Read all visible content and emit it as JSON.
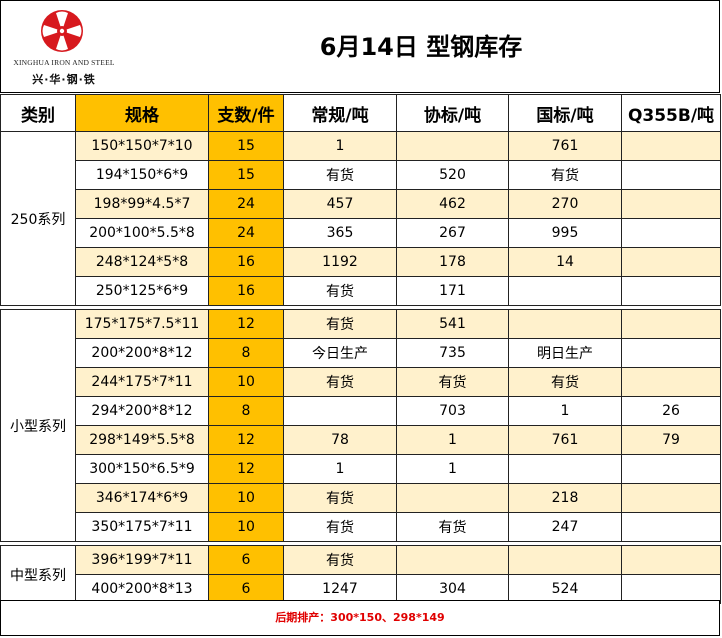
{
  "header": {
    "logo_en": "XINGHUA IRON AND STEEL",
    "logo_cn": "兴·华·钢·铁",
    "title": "6月14日 型钢库存"
  },
  "columns": [
    "类别",
    "规格",
    "支数/件",
    "常规/吨",
    "协标/吨",
    "国标/吨",
    "Q355B/吨"
  ],
  "groups": [
    {
      "name": "250系列",
      "rows": [
        {
          "spec": "150*150*7*10",
          "count": "15",
          "regular": "1",
          "association": "",
          "national": "761",
          "q355b": ""
        },
        {
          "spec": "194*150*6*9",
          "count": "15",
          "regular": "有货",
          "association": "520",
          "national": "有货",
          "q355b": ""
        },
        {
          "spec": "198*99*4.5*7",
          "count": "24",
          "regular": "457",
          "association": "462",
          "national": "270",
          "q355b": ""
        },
        {
          "spec": "200*100*5.5*8",
          "count": "24",
          "regular": "365",
          "association": "267",
          "national": "995",
          "q355b": ""
        },
        {
          "spec": "248*124*5*8",
          "count": "16",
          "regular": "1192",
          "association": "178",
          "national": "14",
          "q355b": ""
        },
        {
          "spec": "250*125*6*9",
          "count": "16",
          "regular": "有货",
          "association": "171",
          "national": "",
          "q355b": ""
        }
      ]
    },
    {
      "name": "小型系列",
      "rows": [
        {
          "spec": "175*175*7.5*11",
          "count": "12",
          "regular": "有货",
          "association": "541",
          "national": "",
          "q355b": ""
        },
        {
          "spec": "200*200*8*12",
          "count": "8",
          "regular": "今日生产",
          "association": "735",
          "national": "明日生产",
          "q355b": ""
        },
        {
          "spec": "244*175*7*11",
          "count": "10",
          "regular": "有货",
          "association": "有货",
          "national": "有货",
          "q355b": ""
        },
        {
          "spec": "294*200*8*12",
          "count": "8",
          "regular": "",
          "association": "703",
          "national": "1",
          "q355b": "26"
        },
        {
          "spec": "298*149*5.5*8",
          "count": "12",
          "regular": "78",
          "association": "1",
          "national": "761",
          "q355b": "79"
        },
        {
          "spec": "300*150*6.5*9",
          "count": "12",
          "regular": "1",
          "association": "1",
          "national": "",
          "q355b": ""
        },
        {
          "spec": "346*174*6*9",
          "count": "10",
          "regular": "有货",
          "association": "",
          "national": "218",
          "q355b": ""
        },
        {
          "spec": "350*175*7*11",
          "count": "10",
          "regular": "有货",
          "association": "有货",
          "national": "247",
          "q355b": ""
        }
      ]
    },
    {
      "name": "中型系列",
      "rows": [
        {
          "spec": "396*199*7*11",
          "count": "6",
          "regular": "有货",
          "association": "",
          "national": "",
          "q355b": ""
        },
        {
          "spec": "400*200*8*13",
          "count": "6",
          "regular": "1247",
          "association": "304",
          "national": "524",
          "q355b": ""
        }
      ]
    }
  ],
  "highlight_values": [
    "今日生产",
    "明日生产"
  ],
  "footer": {
    "note": "后期排产：300*150、298*149"
  },
  "colors": {
    "header_accent": "#ffc000",
    "row_stripe": "#fff1cc",
    "highlight_text": "#e00000",
    "logo_red": "#d7191e"
  }
}
